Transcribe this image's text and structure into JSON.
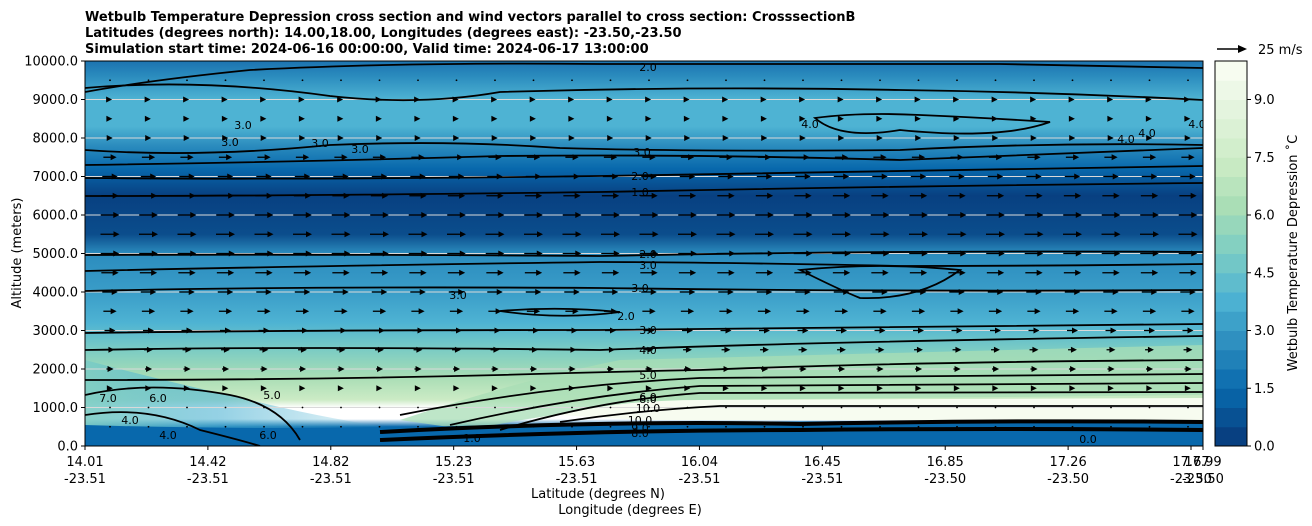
{
  "chart_data": {
    "type": "contour",
    "title_lines": [
      "Wetbulb Temperature Depression cross section and wind vectors parallel to cross section: CrosssectionB",
      "Latitudes (degrees north): 14.00,18.00, Longitudes (degrees east): -23.50,-23.50",
      "Simulation start time: 2024-06-16 00:00:00, Valid time: 2024-06-17 13:00:00"
    ],
    "ylabel": "Altitude (meters)",
    "xlabel_lat": "Latitude (degrees N)",
    "xlabel_lon": "Longitude (degrees E)",
    "ylim": [
      0,
      10000
    ],
    "y_ticks": [
      "0.0",
      "1000.0",
      "2000.0",
      "3000.0",
      "4000.0",
      "5000.0",
      "6000.0",
      "7000.0",
      "8000.0",
      "9000.0",
      "10000.0"
    ],
    "y_tick_values": [
      0,
      1000,
      2000,
      3000,
      4000,
      5000,
      6000,
      7000,
      8000,
      9000,
      10000
    ],
    "x_ticks": [
      {
        "lat": "14.01",
        "lon": "-23.51"
      },
      {
        "lat": "14.42",
        "lon": "-23.51"
      },
      {
        "lat": "14.82",
        "lon": "-23.51"
      },
      {
        "lat": "15.23",
        "lon": "-23.51"
      },
      {
        "lat": "15.63",
        "lon": "-23.51"
      },
      {
        "lat": "16.04",
        "lon": "-23.51"
      },
      {
        "lat": "16.45",
        "lon": "-23.51"
      },
      {
        "lat": "16.85",
        "lon": "-23.50"
      },
      {
        "lat": "17.26",
        "lon": "-23.50"
      },
      {
        "lat": "17.67",
        "lon": "-23.50"
      },
      {
        "lat": "17.99",
        "lon": "-23.50"
      }
    ],
    "colorbar": {
      "label": "Wetbulb Temperature Depression ˚C",
      "range": [
        0,
        10
      ],
      "ticks": [
        "0.0",
        "1.5",
        "3.0",
        "4.5",
        "6.0",
        "7.5",
        "9.0"
      ],
      "tick_values": [
        0,
        1.5,
        3,
        4.5,
        6,
        7.5,
        9
      ],
      "color_stops": [
        "#084081",
        "#0868ac",
        "#2b8cbe",
        "#4eb3d3",
        "#7bccc4",
        "#a8ddb5",
        "#ccebc5",
        "#e0f3db",
        "#f7fcf0"
      ]
    },
    "quiver_key": {
      "label": "25 m/s",
      "speed": 25
    },
    "contour_lines": [
      {
        "level": 2.0,
        "altitude": 9950
      },
      {
        "level": 3.0,
        "altitude": 7350
      },
      {
        "level": 2.0,
        "altitude": 7000
      },
      {
        "level": 1.0,
        "altitude": 6600
      },
      {
        "level": 2.0,
        "altitude": 5100
      },
      {
        "level": 3.0,
        "altitude": 4750
      },
      {
        "level": 3.0,
        "altitude": 4100
      },
      {
        "level": 3.0,
        "altitude": 3000
      },
      {
        "level": 4.0,
        "altitude": 2500
      },
      {
        "level": 5.0,
        "altitude": 1900
      },
      {
        "level": 6.0,
        "altitude": 1450
      },
      {
        "level": 7.0,
        "altitude": 1300
      },
      {
        "level": 10.0,
        "altitude": 1050
      }
    ],
    "contour_labels": [
      "2.0",
      "3.0",
      "2.0",
      "1.0",
      "2.0",
      "3.0",
      "3.0",
      "3.0",
      "4.0",
      "5.0",
      "6.0",
      "8.0",
      "10.0",
      "10.0",
      "9.0",
      "8.0",
      "4.0",
      "4.0",
      "4.0",
      "4.0",
      "3.0",
      "3.0",
      "3.0",
      "3.0",
      "3.0",
      "2.0",
      "6.0",
      "7.0",
      "5.0",
      "4.0",
      "4.0",
      "6.0",
      "1.0",
      "0.0"
    ],
    "wind_vectors": {
      "direction": "parallel to cross section (rightward)",
      "max_speed_altitude": 5500
    }
  }
}
